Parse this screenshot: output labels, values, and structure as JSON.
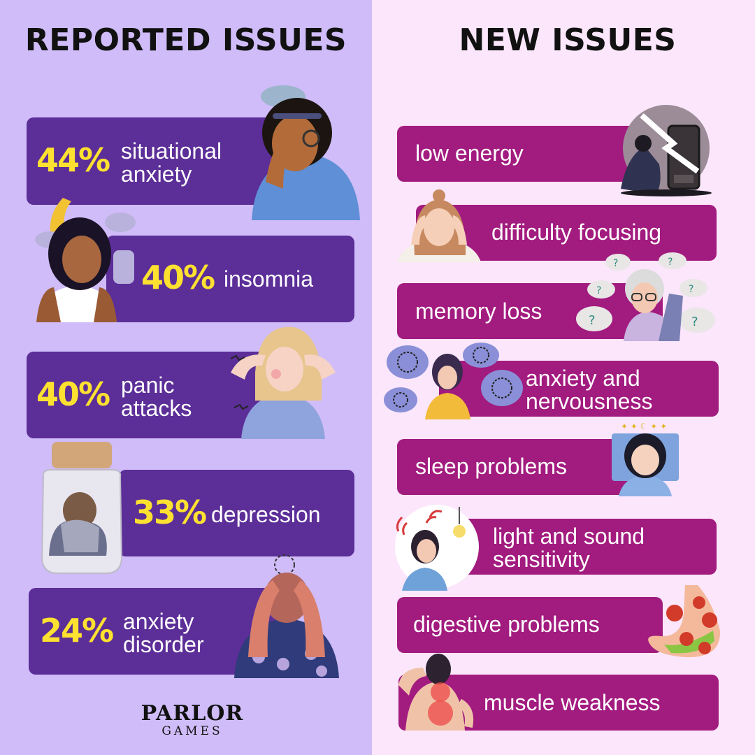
{
  "headings": {
    "left": "REPORTED ISSUES",
    "right": "NEW ISSUES"
  },
  "reported": [
    {
      "percent": "44%",
      "label_line1": "situational",
      "label_line2": "anxiety"
    },
    {
      "percent": "40%",
      "label_line1": "insomnia",
      "label_line2": ""
    },
    {
      "percent": "40%",
      "label_line1": "panic",
      "label_line2": "attacks"
    },
    {
      "percent": "33%",
      "label_line1": "depression",
      "label_line2": ""
    },
    {
      "percent": "24%",
      "label_line1": "anxiety",
      "label_line2": "disorder"
    }
  ],
  "new_issues": [
    {
      "label_line1": "low energy",
      "label_line2": ""
    },
    {
      "label_line1": "difficulty focusing",
      "label_line2": ""
    },
    {
      "label_line1": "memory loss",
      "label_line2": ""
    },
    {
      "label_line1": "anxiety and",
      "label_line2": "nervousness"
    },
    {
      "label_line1": "sleep problems",
      "label_line2": ""
    },
    {
      "label_line1": "light and sound",
      "label_line2": "sensitivity"
    },
    {
      "label_line1": "digestive problems",
      "label_line2": ""
    },
    {
      "label_line1": "muscle weakness",
      "label_line2": ""
    }
  ],
  "logo": {
    "line1": "PARLOR",
    "line2": "GAMES"
  },
  "colors": {
    "left_bg": "#cfbcf8",
    "right_bg": "#fbe6fb",
    "left_bar": "#5c2e98",
    "right_bar": "#a21b7f",
    "percent": "#fde130"
  },
  "icons": [
    "stressed-woman-icon",
    "sleepless-woman-icon",
    "panic-woman-icon",
    "jar-woman-icon",
    "anxious-man-icon",
    "low-battery-icon",
    "focus-woman-icon",
    "confused-elder-icon",
    "tangled-thoughts-icon",
    "tired-woman-icon",
    "lightbulb-sound-icon",
    "stomach-virus-icon",
    "back-pain-icon"
  ]
}
